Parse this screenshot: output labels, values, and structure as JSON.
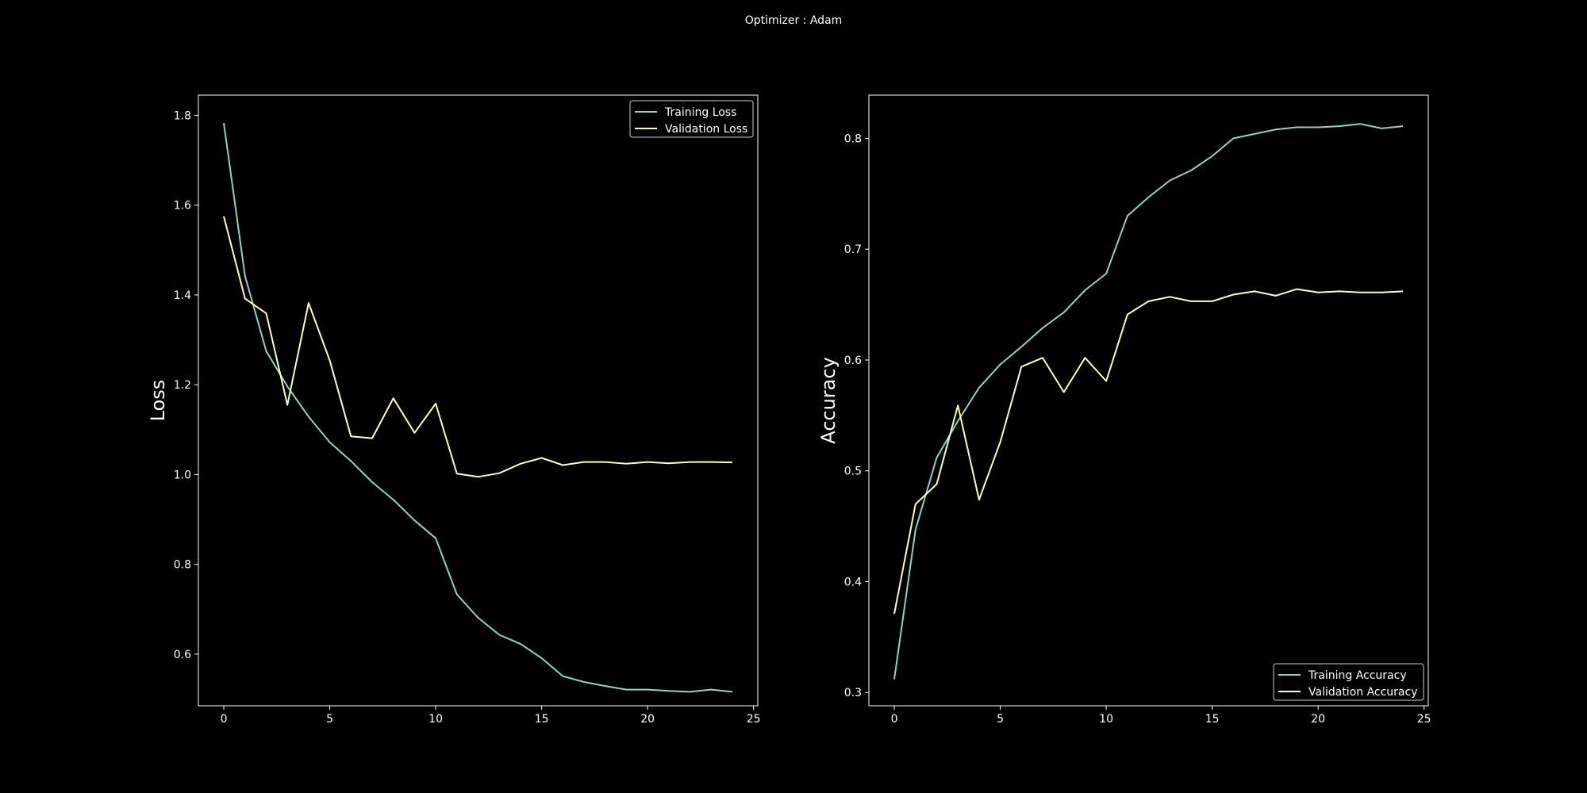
{
  "figure": {
    "suptitle": "Optimizer : Adam",
    "colors": {
      "background": "#000000",
      "axes": "#ffffff",
      "series_1": "#8dd3c7",
      "series_2": "#ffffb3"
    }
  },
  "chart_data": [
    {
      "type": "line",
      "title": "",
      "xlabel": "",
      "ylabel": "Loss",
      "xlim": [
        -1.2,
        25.2
      ],
      "ylim": [
        0.485,
        1.845
      ],
      "xticks": [
        0,
        5,
        10,
        15,
        20,
        25
      ],
      "xtick_labels": [
        "0",
        "5",
        "10",
        "15",
        "20",
        "25"
      ],
      "yticks": [
        0.6,
        0.8,
        1.0,
        1.2,
        1.4,
        1.6,
        1.8
      ],
      "ytick_labels": [
        "0.6",
        "0.8",
        "1.0",
        "1.2",
        "1.4",
        "1.6",
        "1.8"
      ],
      "grid": false,
      "legend_position": "top-right",
      "x": [
        0,
        1,
        2,
        3,
        4,
        5,
        6,
        7,
        8,
        9,
        10,
        11,
        12,
        13,
        14,
        15,
        16,
        17,
        18,
        19,
        20,
        21,
        22,
        23,
        24
      ],
      "series": [
        {
          "name": "Training Loss",
          "color": "#8dd3c7",
          "values": [
            1.783,
            1.442,
            1.275,
            1.196,
            1.129,
            1.072,
            1.03,
            0.983,
            0.944,
            0.898,
            0.858,
            0.733,
            0.681,
            0.643,
            0.623,
            0.591,
            0.551,
            0.538,
            0.529,
            0.521,
            0.521,
            0.518,
            0.516,
            0.521,
            0.516
          ]
        },
        {
          "name": "Validation Loss",
          "color": "#ffffb3",
          "values": [
            1.575,
            1.392,
            1.359,
            1.155,
            1.382,
            1.254,
            1.085,
            1.081,
            1.17,
            1.093,
            1.158,
            1.002,
            0.995,
            1.003,
            1.024,
            1.037,
            1.021,
            1.028,
            1.028,
            1.024,
            1.028,
            1.025,
            1.028,
            1.028,
            1.027
          ]
        }
      ]
    },
    {
      "type": "line",
      "title": "",
      "xlabel": "",
      "ylabel": "Accuracy",
      "xlim": [
        -1.2,
        25.2
      ],
      "ylim": [
        0.288,
        0.839
      ],
      "xticks": [
        0,
        5,
        10,
        15,
        20,
        25
      ],
      "xtick_labels": [
        "0",
        "5",
        "10",
        "15",
        "20",
        "25"
      ],
      "yticks": [
        0.3,
        0.4,
        0.5,
        0.6,
        0.7,
        0.8
      ],
      "ytick_labels": [
        "0.3",
        "0.4",
        "0.5",
        "0.6",
        "0.7",
        "0.8"
      ],
      "grid": false,
      "legend_position": "bottom-right",
      "x": [
        0,
        1,
        2,
        3,
        4,
        5,
        6,
        7,
        8,
        9,
        10,
        11,
        12,
        13,
        14,
        15,
        16,
        17,
        18,
        19,
        20,
        21,
        22,
        23,
        24
      ],
      "series": [
        {
          "name": "Training Accuracy",
          "color": "#8dd3c7",
          "values": [
            0.312,
            0.447,
            0.512,
            0.545,
            0.575,
            0.596,
            0.612,
            0.629,
            0.643,
            0.663,
            0.678,
            0.73,
            0.747,
            0.762,
            0.771,
            0.784,
            0.8,
            0.804,
            0.808,
            0.81,
            0.81,
            0.811,
            0.813,
            0.809,
            0.811
          ]
        },
        {
          "name": "Validation Accuracy",
          "color": "#ffffb3",
          "values": [
            0.371,
            0.47,
            0.488,
            0.559,
            0.474,
            0.526,
            0.594,
            0.602,
            0.571,
            0.602,
            0.581,
            0.641,
            0.653,
            0.657,
            0.653,
            0.653,
            0.659,
            0.662,
            0.658,
            0.664,
            0.661,
            0.662,
            0.661,
            0.661,
            0.662
          ]
        }
      ]
    }
  ]
}
